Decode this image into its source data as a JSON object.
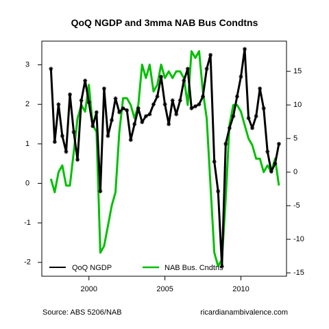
{
  "chart_data": {
    "type": "line",
    "title": "QoQ NGDP and 3mma NAB Bus Condtns",
    "x_ticks": [
      "2000",
      "2005",
      "2010"
    ],
    "x_range": [
      1996.9,
      2013.0
    ],
    "y_left_ticks": [
      "-2",
      "-1",
      "0",
      "1",
      "2",
      "3"
    ],
    "y_left_range": [
      -2.35,
      3.6
    ],
    "y_right_ticks": [
      "-15",
      "-10",
      "-5",
      "0",
      "5",
      "10",
      "15"
    ],
    "y_right_range": [
      -15.5,
      19.5
    ],
    "grid": false,
    "legend_placement": "bottom",
    "series": [
      {
        "name": "QoQ NGDP",
        "axis": "left",
        "color": "#000000",
        "markers": "asterisk",
        "x": [
          1997.5,
          1997.75,
          1998.0,
          1998.25,
          1998.5,
          1998.75,
          1999.0,
          1999.25,
          1999.5,
          1999.75,
          2000.0,
          2000.25,
          2000.5,
          2000.75,
          2001.0,
          2001.25,
          2001.5,
          2001.75,
          2002.0,
          2002.25,
          2002.5,
          2002.75,
          2003.0,
          2003.25,
          2003.5,
          2003.75,
          2004.0,
          2004.25,
          2004.5,
          2004.75,
          2005.0,
          2005.25,
          2005.5,
          2005.75,
          2006.0,
          2006.25,
          2006.5,
          2006.75,
          2007.0,
          2007.25,
          2007.5,
          2007.75,
          2008.0,
          2008.25,
          2008.5,
          2008.75,
          2009.0,
          2009.25,
          2009.5,
          2009.75,
          2010.0,
          2010.25,
          2010.5,
          2010.75,
          2011.0,
          2011.25,
          2011.5,
          2011.75,
          2012.0,
          2012.25,
          2012.5
        ],
        "values": [
          2.9,
          1.05,
          2.0,
          1.2,
          0.8,
          2.25,
          1.3,
          0.6,
          2.1,
          2.6,
          2.05,
          1.45,
          1.8,
          -0.2,
          2.4,
          1.2,
          1.6,
          2.15,
          1.8,
          1.9,
          1.85,
          1.1,
          1.5,
          1.9,
          1.55,
          1.7,
          1.75,
          2.0,
          2.2,
          2.7,
          2.0,
          1.5,
          2.1,
          1.75,
          2.1,
          2.6,
          2.9,
          1.9,
          1.95,
          2.0,
          2.2,
          2.9,
          3.25,
          0.55,
          -0.2,
          -2.1,
          1.0,
          1.4,
          1.7,
          2.2,
          2.7,
          3.4,
          1.65,
          1.4,
          1.7,
          2.4,
          1.9,
          0.8,
          0.3,
          0.5,
          1.0
        ]
      },
      {
        "name": "NAB Bus. Cndtns",
        "axis": "right",
        "color": "#00c000",
        "x": [
          1997.5,
          1997.75,
          1998.0,
          1998.25,
          1998.5,
          1998.75,
          1999.0,
          1999.25,
          1999.5,
          1999.75,
          2000.0,
          2000.25,
          2000.5,
          2000.75,
          2001.0,
          2001.25,
          2001.5,
          2001.75,
          2002.0,
          2002.25,
          2002.5,
          2002.75,
          2003.0,
          2003.25,
          2003.5,
          2003.75,
          2004.0,
          2004.25,
          2004.5,
          2004.75,
          2005.0,
          2005.25,
          2005.5,
          2005.75,
          2006.0,
          2006.25,
          2006.5,
          2006.75,
          2007.0,
          2007.25,
          2007.5,
          2007.75,
          2008.0,
          2008.25,
          2008.5,
          2008.75,
          2009.0,
          2009.25,
          2009.5,
          2009.75,
          2010.0,
          2010.25,
          2010.5,
          2010.75,
          2011.0,
          2011.25,
          2011.5,
          2011.75,
          2012.0,
          2012.25,
          2012.5
        ],
        "values": [
          -1.0,
          -3.0,
          0.0,
          1.0,
          -2.0,
          -2.0,
          3.0,
          8.0,
          10.0,
          9.0,
          13.0,
          7.0,
          6.0,
          -12.0,
          -11.0,
          -8.0,
          -5.0,
          -3.0,
          6.0,
          11.0,
          11.0,
          10.0,
          8.0,
          10.0,
          16.0,
          14.0,
          16.0,
          12.0,
          13.0,
          16.0,
          14.0,
          15.0,
          14.0,
          15.0,
          15.0,
          14.0,
          10.0,
          18.0,
          17.0,
          18.0,
          12.0,
          8.0,
          -2.0,
          -12.0,
          -14.0,
          -13.0,
          -4.0,
          7.0,
          10.0,
          10.0,
          9.0,
          7.0,
          5.0,
          4.0,
          2.0,
          2.0,
          0.0,
          1.0,
          0.0,
          2.0,
          -2.0
        ]
      }
    ]
  },
  "footer": {
    "source": "Source: ABS 5206/NAB",
    "site": "ricardianambivalence.com"
  }
}
